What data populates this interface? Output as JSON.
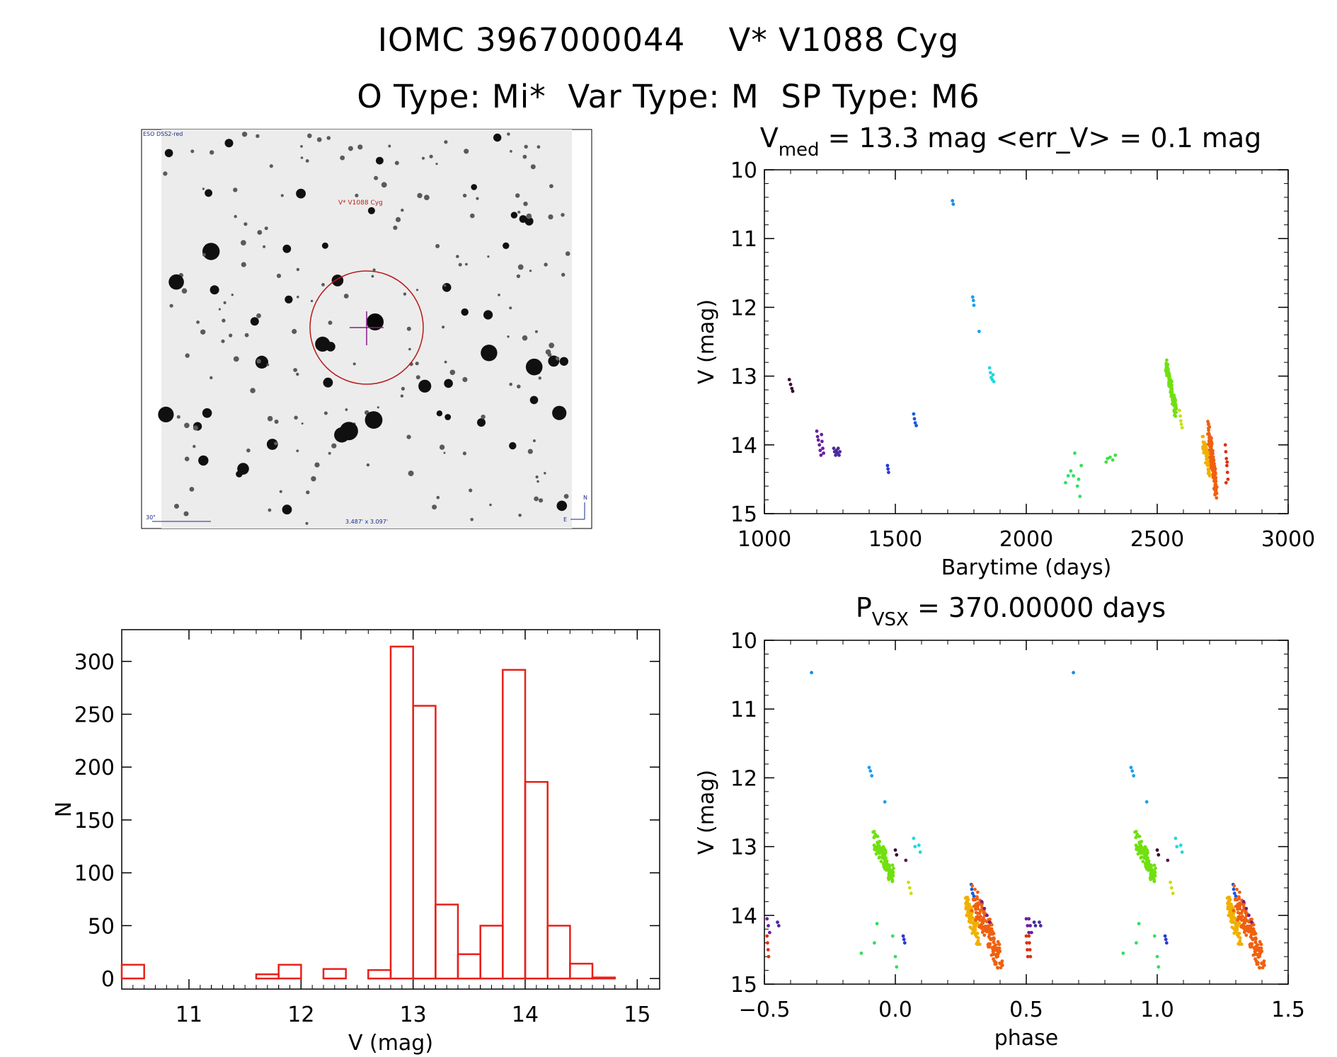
{
  "header": {
    "catalog_id": "IOMC 3967000044",
    "star_name": "V* V1088 Cyg",
    "otype_label": "O Type: Mi*",
    "vartype_label": "Var Type: M",
    "sptype_label": "SP Type: M6"
  },
  "finder_image": {
    "survey_label": "ESO DSS2-red",
    "target_label": "V* V1088 Cyg",
    "scale_label": "30\"",
    "fov_label": "3.487' x 3.097'",
    "north_label": "N",
    "east_label": "E"
  },
  "chart_data": [
    {
      "id": "lightcurve",
      "type": "scatter",
      "title_main": "V",
      "title_sub": "med",
      "title_rest": " = 13.3 mag <err_V> = 0.1 mag",
      "xlabel": "Barytime (days)",
      "ylabel": "V (mag)",
      "xlim": [
        1000,
        3000
      ],
      "ylim": [
        15,
        10
      ],
      "xticks": [
        1000,
        1500,
        2000,
        2500,
        3000
      ],
      "yticks": [
        10,
        11,
        12,
        13,
        14,
        15
      ],
      "groups": [
        {
          "color": "#3a0a30",
          "x": [
            1095,
            1100,
            1105,
            1108
          ],
          "y": [
            13.05,
            13.12,
            13.18,
            13.22
          ]
        },
        {
          "color": "#6a1fa0",
          "x": [
            1200,
            1203,
            1206,
            1210,
            1213,
            1216,
            1218,
            1220,
            1223,
            1226
          ],
          "y": [
            13.8,
            13.88,
            13.93,
            14.0,
            14.08,
            14.15,
            13.85,
            13.95,
            14.05,
            14.12
          ]
        },
        {
          "color": "#4a2a9a",
          "x": [
            1265,
            1268,
            1272,
            1275,
            1278,
            1282,
            1285,
            1288
          ],
          "y": [
            14.05,
            14.1,
            14.15,
            14.08,
            14.12,
            14.05,
            14.15,
            14.1
          ]
        },
        {
          "color": "#2a3ad0",
          "x": [
            1470,
            1472,
            1474
          ],
          "y": [
            14.3,
            14.35,
            14.4
          ]
        },
        {
          "color": "#1a58e0",
          "x": [
            1570,
            1573,
            1576,
            1580
          ],
          "y": [
            13.55,
            13.62,
            13.68,
            13.72
          ]
        },
        {
          "color": "#1a8ae8",
          "x": [
            1718,
            1721
          ],
          "y": [
            10.45,
            10.5
          ]
        },
        {
          "color": "#1aa0f0",
          "x": [
            1795,
            1798,
            1800,
            1820
          ],
          "y": [
            11.85,
            11.9,
            11.97,
            12.35
          ]
        },
        {
          "color": "#20d8e0",
          "x": [
            1860,
            1863,
            1866,
            1870,
            1873,
            1876
          ],
          "y": [
            12.88,
            12.95,
            13.02,
            13.05,
            12.98,
            13.08
          ]
        },
        {
          "color": "#30e060",
          "x": [
            2150,
            2160,
            2170,
            2185,
            2195,
            2205,
            2210,
            2200,
            2180
          ],
          "y": [
            14.55,
            14.45,
            14.38,
            14.12,
            14.6,
            14.75,
            14.3,
            14.5,
            14.45
          ]
        },
        {
          "color": "#40e040",
          "x": [
            2305,
            2310,
            2320,
            2330,
            2340
          ],
          "y": [
            14.25,
            14.2,
            14.18,
            14.22,
            14.15
          ]
        },
        {
          "color": "#70e010",
          "generate": {
            "x0": 2535,
            "x1": 2570,
            "y0": 12.85,
            "y1": 13.5,
            "n": 110,
            "spread": 0.09
          }
        },
        {
          "color": "#c8e010",
          "x": [
            2585,
            2588,
            2590,
            2592,
            2595
          ],
          "y": [
            13.5,
            13.58,
            13.65,
            13.7,
            13.75
          ]
        },
        {
          "color": "#f0b000",
          "generate": {
            "x0": 2675,
            "x1": 2700,
            "y0": 13.95,
            "y1": 14.35,
            "n": 70,
            "spread": 0.12
          }
        },
        {
          "color": "#f06010",
          "generate": {
            "x0": 2695,
            "x1": 2725,
            "y0": 13.75,
            "y1": 14.65,
            "n": 130,
            "spread": 0.15
          }
        },
        {
          "color": "#e03010",
          "x": [
            2760,
            2762,
            2764,
            2766,
            2768,
            2770,
            2763,
            2767
          ],
          "y": [
            14.0,
            14.1,
            14.2,
            14.3,
            14.4,
            14.5,
            14.55,
            14.25
          ]
        }
      ]
    },
    {
      "id": "histogram",
      "type": "bar",
      "title": "",
      "xlabel": "V (mag)",
      "ylabel": "N",
      "xlim": [
        10.4,
        15.2
      ],
      "ylim": [
        -10,
        330
      ],
      "xticks": [
        11,
        12,
        13,
        14,
        15
      ],
      "yticks": [
        0,
        50,
        100,
        150,
        200,
        250,
        300
      ],
      "bin_edges": [
        10.4,
        10.6,
        10.8,
        11.0,
        11.2,
        11.4,
        11.6,
        11.8,
        12.0,
        12.2,
        12.4,
        12.6,
        12.8,
        13.0,
        13.2,
        13.4,
        13.6,
        13.8,
        14.0,
        14.2,
        14.4,
        14.6,
        14.8,
        15.0
      ],
      "values": [
        13,
        0,
        0,
        0,
        0,
        0,
        4,
        13,
        0,
        9,
        0,
        8,
        314,
        258,
        70,
        23,
        50,
        292,
        186,
        50,
        14,
        1,
        0
      ],
      "bar_color": "#e8201a"
    },
    {
      "id": "phased",
      "type": "scatter",
      "title_main": "P",
      "title_sub": "VSX",
      "title_rest": " = 370.00000 days",
      "xlabel": "phase",
      "ylabel": "V (mag)",
      "xlim": [
        -0.5,
        1.5
      ],
      "ylim": [
        15,
        10
      ],
      "xticks": [
        -0.5,
        0.0,
        0.5,
        1.0,
        1.5
      ],
      "yticks": [
        10,
        11,
        12,
        13,
        14,
        15
      ],
      "xtick_labels": [
        "−0.5",
        "0.0",
        "0.5",
        "1.0",
        "1.5"
      ],
      "duplicate_phase_offset": 1.0,
      "groups": [
        {
          "color": "#1a8ae8",
          "x": [
            -0.32
          ],
          "y": [
            10.47
          ]
        },
        {
          "color": "#1aa0f0",
          "x": [
            -0.1,
            -0.095,
            -0.09,
            -0.04
          ],
          "y": [
            11.85,
            11.9,
            11.97,
            12.35
          ]
        },
        {
          "color": "#70e010",
          "generate": {
            "x0": -0.08,
            "x1": -0.01,
            "y0": 12.88,
            "y1": 13.45,
            "n": 110,
            "spread": 0.12
          }
        },
        {
          "color": "#3a0a30",
          "x": [
            0.0,
            0.005
          ],
          "y": [
            13.05,
            13.12
          ]
        },
        {
          "color": "#5a1a50",
          "x": [
            0.04
          ],
          "y": [
            13.2
          ]
        },
        {
          "color": "#c8e010",
          "x": [
            0.05,
            0.055,
            0.06
          ],
          "y": [
            13.52,
            13.6,
            13.68
          ]
        },
        {
          "color": "#20d8e0",
          "x": [
            0.07,
            0.075,
            0.09,
            0.095
          ],
          "y": [
            12.88,
            13.0,
            12.98,
            13.08
          ]
        },
        {
          "color": "#30e060",
          "x": [
            -0.13,
            -0.08,
            -0.07,
            -0.01,
            0.0,
            0.005
          ],
          "y": [
            14.55,
            14.4,
            14.12,
            14.3,
            14.6,
            14.75
          ]
        },
        {
          "color": "#2a3ad0",
          "x": [
            0.03,
            0.033,
            0.036
          ],
          "y": [
            14.3,
            14.35,
            14.4
          ]
        },
        {
          "color": "#1a58e0",
          "x": [
            0.29,
            0.292,
            0.295,
            0.3
          ],
          "y": [
            13.55,
            13.62,
            13.68,
            13.72
          ]
        },
        {
          "color": "#f0b000",
          "generate": {
            "x0": 0.27,
            "x1": 0.32,
            "y0": 13.85,
            "y1": 14.35,
            "n": 80,
            "spread": 0.15
          }
        },
        {
          "color": "#f06010",
          "generate": {
            "x0": 0.3,
            "x1": 0.4,
            "y0": 13.75,
            "y1": 14.65,
            "n": 150,
            "spread": 0.18
          }
        },
        {
          "color": "#7a2080",
          "x": [
            0.33,
            0.34,
            0.35,
            0.36
          ],
          "y": [
            13.8,
            13.9,
            14.0,
            14.1
          ]
        },
        {
          "color": "#6a1fa0",
          "x": [
            -0.49,
            -0.485,
            -0.48,
            0.5,
            0.505,
            0.51
          ],
          "y": [
            14.05,
            14.15,
            14.25,
            14.05,
            14.15,
            14.25
          ]
        },
        {
          "color": "#e03010",
          "x": [
            -0.49,
            -0.488,
            -0.486,
            -0.484,
            0.5,
            0.502,
            0.504,
            0.506
          ],
          "y": [
            14.3,
            14.4,
            14.5,
            14.6,
            14.3,
            14.4,
            14.5,
            14.6
          ]
        },
        {
          "color": "#4a2a9a",
          "x": [
            -0.45,
            -0.445,
            0.53,
            0.535
          ],
          "y": [
            14.1,
            14.15,
            14.1,
            14.15
          ]
        }
      ]
    }
  ]
}
